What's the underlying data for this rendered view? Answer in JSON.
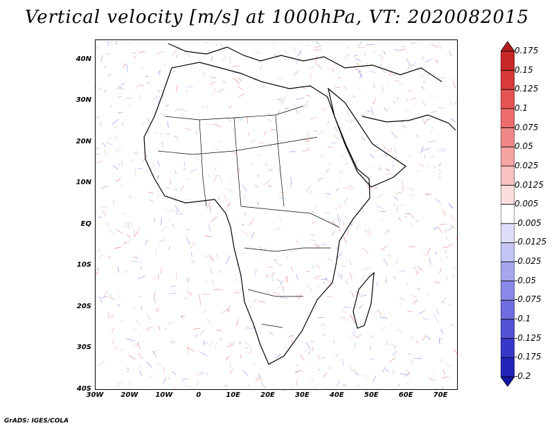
{
  "title": "Vertical velocity [m/s] at 1000hPa, VT: 2020082015",
  "credit": "GrADS: IGES/COLA",
  "map": {
    "lon_range": [
      -30,
      75
    ],
    "lat_range": [
      -40,
      45
    ],
    "lat_labels": [
      "40N",
      "30N",
      "20N",
      "10N",
      "EQ",
      "10S",
      "20S",
      "30S",
      "40S"
    ],
    "lat_values": [
      40,
      30,
      20,
      10,
      0,
      -10,
      -20,
      -30,
      -40
    ],
    "lon_labels": [
      "30W",
      "20W",
      "10W",
      "0",
      "10E",
      "20E",
      "30E",
      "40E",
      "50E",
      "60E",
      "70E"
    ],
    "lon_values": [
      -30,
      -20,
      -10,
      0,
      10,
      20,
      30,
      40,
      50,
      60,
      70
    ],
    "colors": {
      "positive": "#e06060",
      "negative": "#6c6cf0",
      "coast": "#000000"
    }
  },
  "colorbar": {
    "labels": [
      "0.175",
      "0.15",
      "0.125",
      "0.1",
      "0.075",
      "0.05",
      "0.025",
      "0.0125",
      "0.005",
      "-0.005",
      "-0.0125",
      "-0.025",
      "-0.05",
      "-0.075",
      "-0.1",
      "-0.125",
      "-0.175",
      "-0.2"
    ],
    "colors": [
      "#b51e1e",
      "#c72828",
      "#d83a3a",
      "#e55454",
      "#ec6c6c",
      "#f18888",
      "#f5a4a4",
      "#f9c2c2",
      "#fcdede",
      "#ffffff",
      "#dedef9",
      "#c4c4f5",
      "#a6a6ef",
      "#8a8ae8",
      "#6e6ee0",
      "#5252d6",
      "#3838c8",
      "#2424b8",
      "#1616a2"
    ]
  }
}
